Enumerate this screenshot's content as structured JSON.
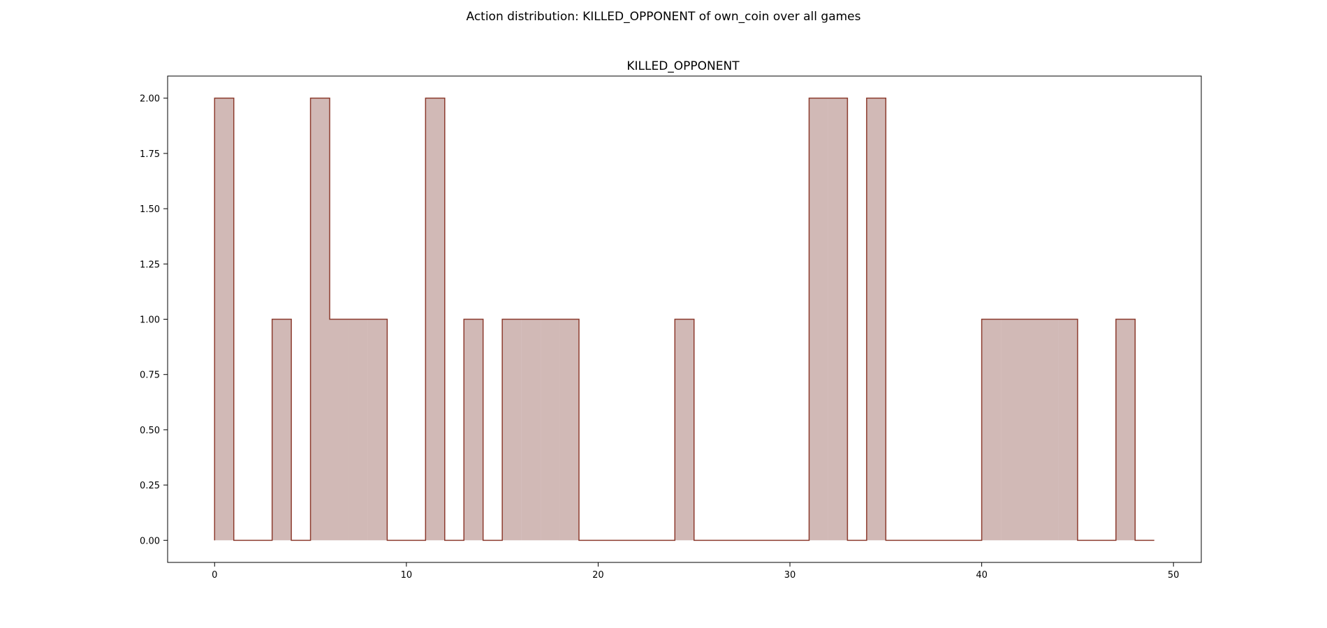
{
  "figure_title": "Action distribution: KILLED_OPPONENT of own_coin over all games",
  "chart_data": {
    "type": "area",
    "title": "KILLED_OPPONENT",
    "xlabel": "",
    "ylabel": "",
    "step": "post",
    "x": [
      0,
      1,
      2,
      3,
      4,
      5,
      6,
      7,
      8,
      9,
      10,
      11,
      12,
      13,
      14,
      15,
      16,
      17,
      18,
      19,
      20,
      21,
      22,
      23,
      24,
      25,
      26,
      27,
      28,
      29,
      30,
      31,
      32,
      33,
      34,
      35,
      36,
      37,
      38,
      39,
      40,
      41,
      42,
      43,
      44,
      45,
      46,
      47,
      48,
      49
    ],
    "series": [
      {
        "values": [
          2,
          0,
          0,
          1,
          0,
          2,
          1,
          1,
          1,
          0,
          0,
          2,
          0,
          1,
          0,
          1,
          1,
          1,
          1,
          0,
          0,
          0,
          0,
          0,
          1,
          0,
          0,
          0,
          0,
          0,
          0,
          2,
          2,
          0,
          2,
          0,
          0,
          0,
          0,
          0,
          1,
          1,
          1,
          1,
          1,
          0,
          0,
          1,
          0,
          0
        ],
        "line_color": "#8c3b2e",
        "fill_color": "#d1b9b6"
      }
    ],
    "xlim": [
      -2.45,
      51.45
    ],
    "ylim": [
      -0.1,
      2.1
    ],
    "xticks": [
      0,
      10,
      20,
      30,
      40,
      50
    ],
    "xtick_labels": [
      "0",
      "10",
      "20",
      "30",
      "40",
      "50"
    ],
    "yticks": [
      0,
      0.25,
      0.5,
      0.75,
      1.0,
      1.25,
      1.5,
      1.75,
      2.0
    ],
    "ytick_labels": [
      "0.00",
      "0.25",
      "0.50",
      "0.75",
      "1.00",
      "1.25",
      "1.50",
      "1.75",
      "2.00"
    ],
    "grid": false,
    "legend": "none"
  }
}
